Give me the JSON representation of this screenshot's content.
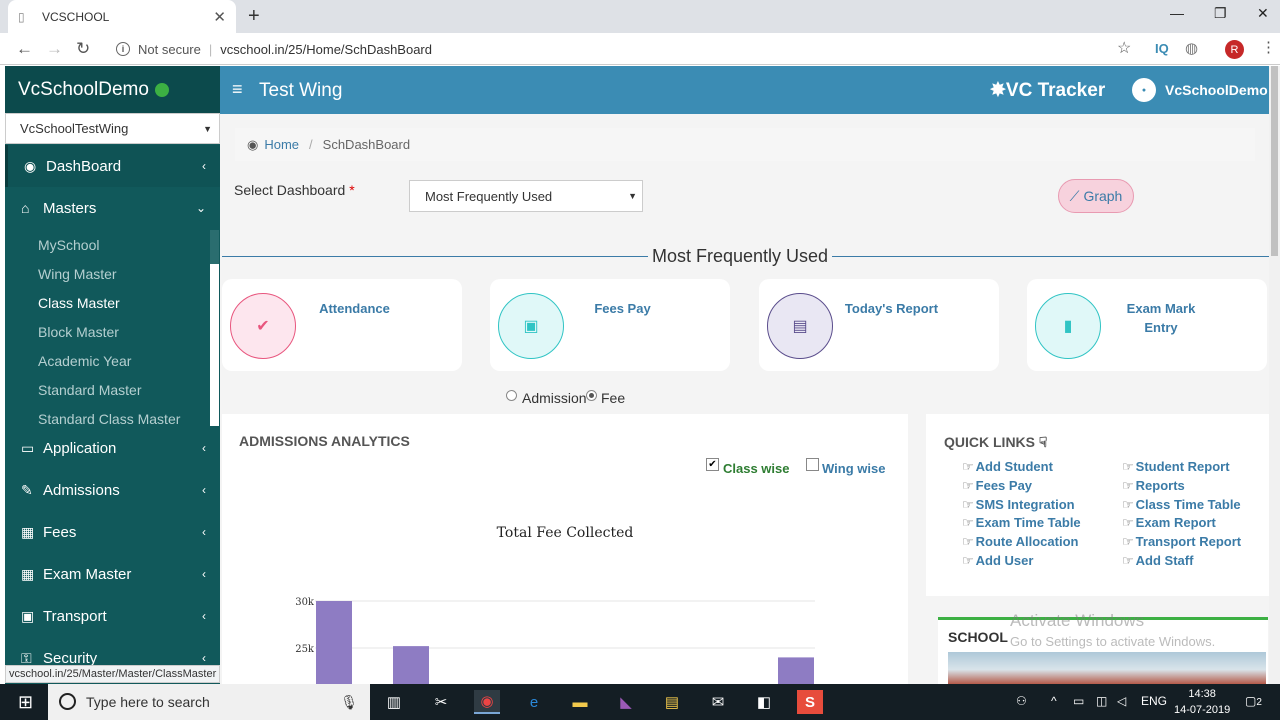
{
  "browser": {
    "tab_title": "VCSCHOOL",
    "security": "Not secure",
    "url": "vcschool.in/25/Home/SchDashBoard",
    "profile_initial": "R",
    "status_url": "vcschool.in/25/Master/Master/ClassMaster"
  },
  "sidebar": {
    "brand": "VcSchoolDemo",
    "wing_select": "VcSchoolTestWing",
    "menu": [
      {
        "label": "DashBoard"
      },
      {
        "label": "Masters"
      },
      {
        "label": "Application"
      },
      {
        "label": "Admissions"
      },
      {
        "label": "Fees"
      },
      {
        "label": "Exam Master"
      },
      {
        "label": "Transport"
      },
      {
        "label": "Security"
      }
    ],
    "submenu": [
      {
        "label": "MySchool"
      },
      {
        "label": "Wing Master"
      },
      {
        "label": "Class Master"
      },
      {
        "label": "Block Master"
      },
      {
        "label": "Academic Year"
      },
      {
        "label": "Standard Master"
      },
      {
        "label": "Standard Class Master"
      }
    ]
  },
  "topbar": {
    "wing_title": "Test Wing",
    "tracker": "VC Tracker",
    "user": "VcSchoolDemo"
  },
  "breadcrumb": {
    "home": "Home",
    "current": "SchDashBoard"
  },
  "dashboard": {
    "select_label": "Select Dashboard",
    "required_mark": "*",
    "selected": "Most Frequently Used",
    "graph_button": "Graph",
    "section_title": "Most Frequently Used",
    "cards": [
      {
        "label": "Attendance",
        "icon": "check-icon",
        "color": "#e8567e"
      },
      {
        "label": "Fees Pay",
        "icon": "money-icon",
        "color": "#30c4c4"
      },
      {
        "label": "Today's Report",
        "icon": "report-icon",
        "color": "#5a4d8c"
      },
      {
        "label": "Exam Mark\nEntry",
        "icon": "document-icon",
        "color": "#30c4c4"
      }
    ],
    "radio": {
      "admission": "Admission",
      "fee": "Fee",
      "selected": "Fee"
    }
  },
  "analytics": {
    "title": "ADMISSIONS ANALYTICS",
    "class_wise": "Class wise",
    "wing_wise": "Wing wise",
    "chart_data": {
      "type": "bar",
      "title": "Total Fee Collected",
      "yticks": [
        "30k",
        "25k"
      ],
      "values": [
        30000,
        25200,
        24000
      ],
      "color": "#8e7cc3"
    }
  },
  "quick_links": {
    "title": "QUICK LINKS",
    "left": [
      "Add Student",
      "Fees Pay",
      "SMS Integration",
      "Exam Time Table",
      "Route Allocation",
      "Add User"
    ],
    "right": [
      "Student Report",
      "Reports",
      "Class Time Table",
      "Exam Report",
      "Transport Report",
      "Add Staff"
    ]
  },
  "school": {
    "title": "SCHOOL"
  },
  "watermark": {
    "line1": "Activate Windows",
    "line2": "Go to Settings to activate Windows."
  },
  "taskbar": {
    "search_placeholder": "Type here to search",
    "lang": "ENG",
    "time": "14:38",
    "date": "14-07-2019",
    "notifications": "2"
  }
}
